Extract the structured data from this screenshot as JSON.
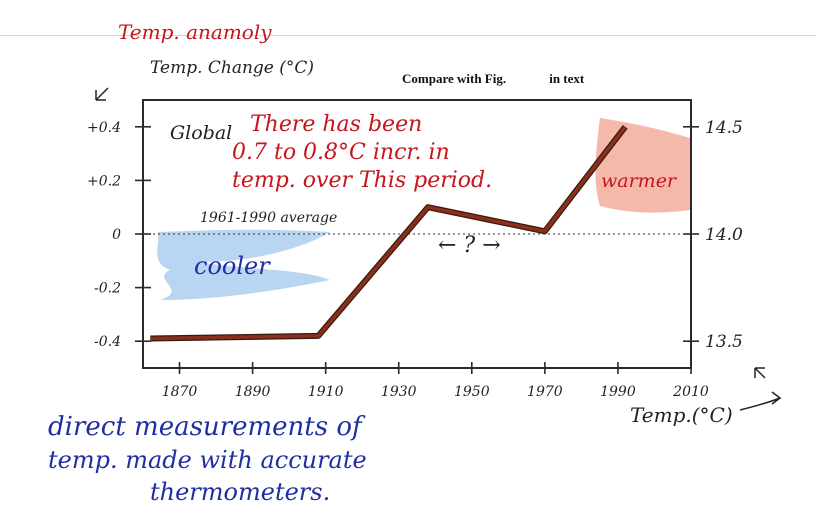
{
  "annotations": {
    "top_left_red": "Temp. anamoly",
    "left_axis_title": "Temp. Change (°C)",
    "header_title": "Compare with Fig.",
    "header_suffix": "in text",
    "global_label": "Global",
    "red_note_line1": "There has been",
    "red_note_line2": "0.7 to 0.8°C incr. in",
    "red_note_line3": "temp. over This period.",
    "average_label": "1961-1990 average",
    "cooler_label": "cooler",
    "warmer_label": "warmer",
    "flat_period_label": "← ? →",
    "right_axis_title": "Temp.(°C)",
    "bottom_note_line1": "direct measurements of",
    "bottom_note_line2": "temp. made with accurate",
    "bottom_note_line3": "thermometers."
  },
  "chart_data": {
    "type": "line",
    "title": "Compare with Fig. in text",
    "xlabel": "",
    "ylabel": "Temp. Change (°C)",
    "y2label": "Temp.(°C)",
    "xlim": [
      1860,
      2010
    ],
    "ylim": [
      -0.5,
      0.5
    ],
    "x_ticks": [
      1870,
      1890,
      1910,
      1930,
      1950,
      1970,
      1990,
      2010
    ],
    "y_ticks": [
      -0.4,
      -0.2,
      0,
      0.2,
      0.4
    ],
    "y_tick_labels": [
      "-0.4",
      "-0.2",
      "0",
      "+0.2",
      "+0.4"
    ],
    "y2_ticks": [
      13.5,
      14.0,
      14.5
    ],
    "y2_tick_labels": [
      "13.5",
      "14.0",
      "14.5"
    ],
    "series": [
      {
        "x": [
          1862,
          1908,
          1938,
          1970,
          1992
        ],
        "y": [
          -0.39,
          -0.38,
          0.1,
          0.01,
          0.4
        ],
        "color": "#8a2f1b"
      }
    ],
    "reference_line": {
      "y": 0,
      "style": "dotted"
    },
    "grid": false
  }
}
